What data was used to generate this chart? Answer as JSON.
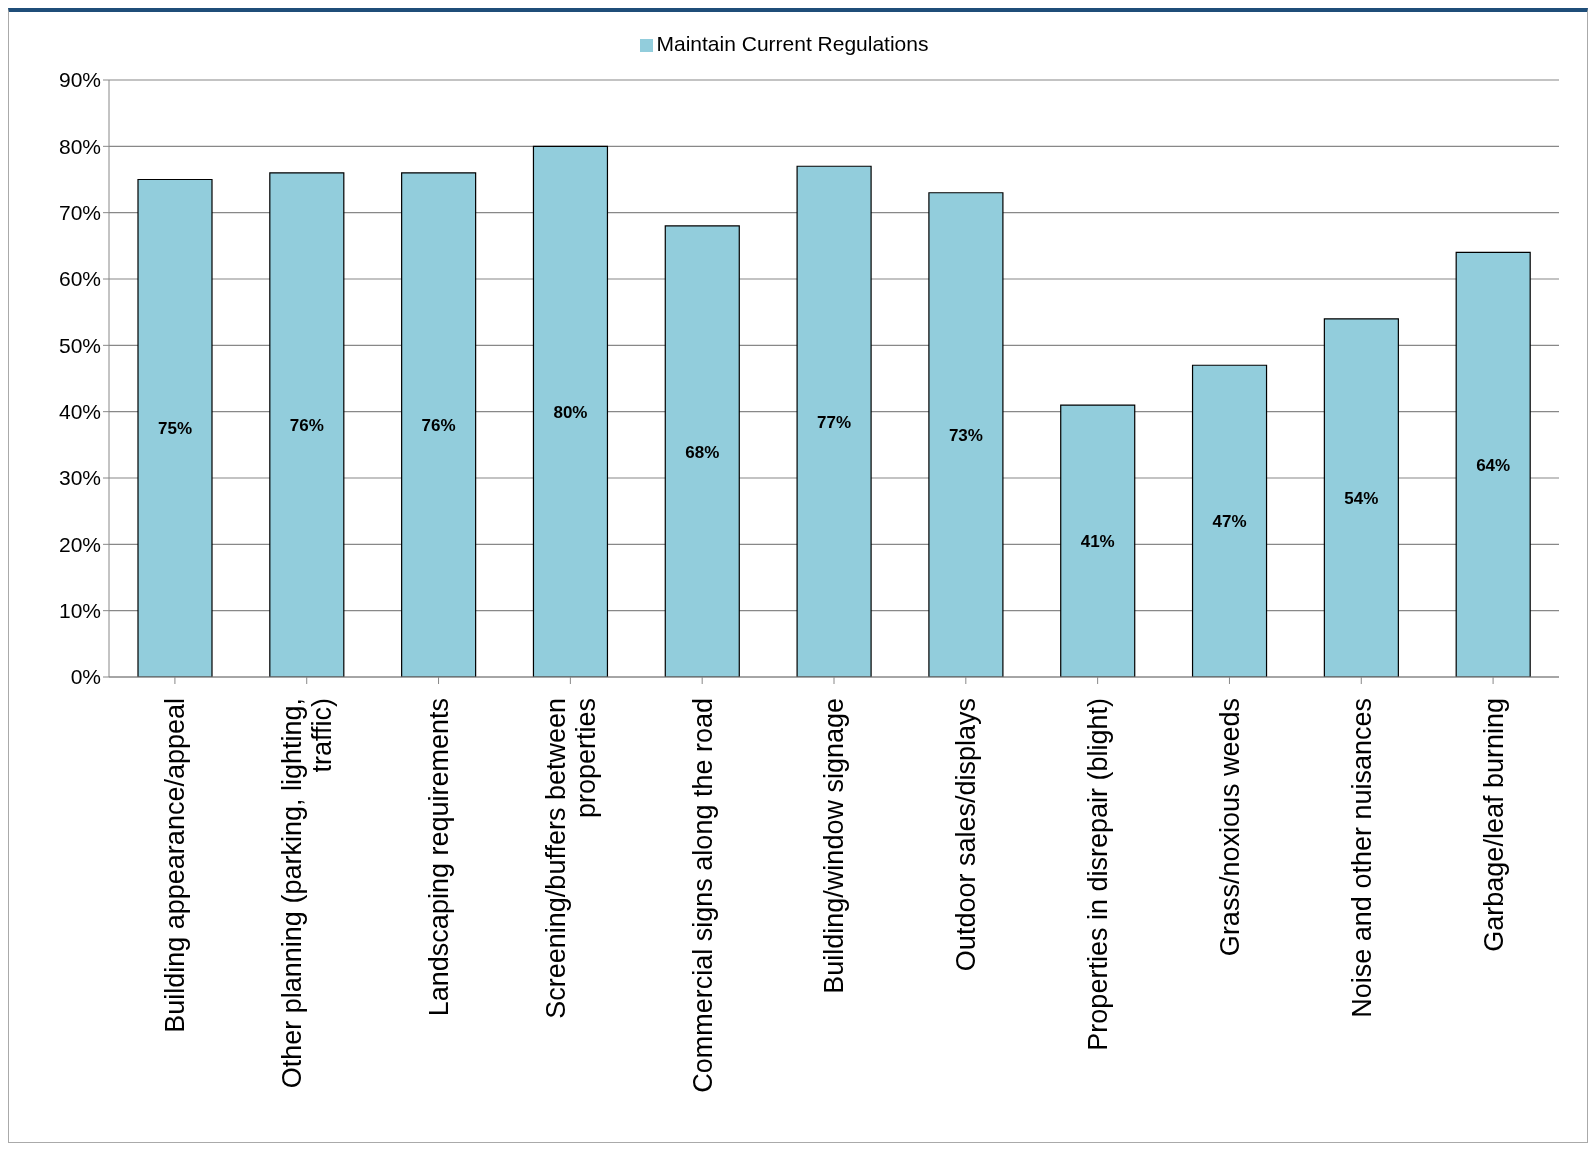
{
  "chart_data": {
    "type": "bar",
    "categories": [
      "Building appearance/appeal",
      "Other planning (parking, lighting, traffic)",
      "Landscaping requirements",
      "Screening/buffers between properties",
      "Commercial signs along the road",
      "Building/window signage",
      "Outdoor sales/displays",
      "Properties in disrepair (blight)",
      "Grass/noxious weeds",
      "Noise and other nuisances",
      "Garbage/leaf burning"
    ],
    "series": [
      {
        "name": "Maintain Current Regulations",
        "color": "#92cddc",
        "values": [
          75,
          76,
          76,
          80,
          68,
          77,
          73,
          41,
          47,
          54,
          64
        ],
        "value_labels": [
          "75%",
          "76%",
          "76%",
          "80%",
          "68%",
          "77%",
          "73%",
          "41%",
          "47%",
          "54%",
          "64%"
        ]
      }
    ],
    "ylim": [
      0,
      90
    ],
    "yticks": [
      {
        "value": 0,
        "label": "0%"
      },
      {
        "value": 10,
        "label": "10%"
      },
      {
        "value": 20,
        "label": "20%"
      },
      {
        "value": 30,
        "label": "30%"
      },
      {
        "value": 40,
        "label": "40%"
      },
      {
        "value": 50,
        "label": "50%"
      },
      {
        "value": 60,
        "label": "60%"
      },
      {
        "value": 70,
        "label": "70%"
      },
      {
        "value": 80,
        "label": "80%"
      },
      {
        "value": 90,
        "label": "90%"
      }
    ],
    "grid": "y",
    "legend": "top"
  }
}
